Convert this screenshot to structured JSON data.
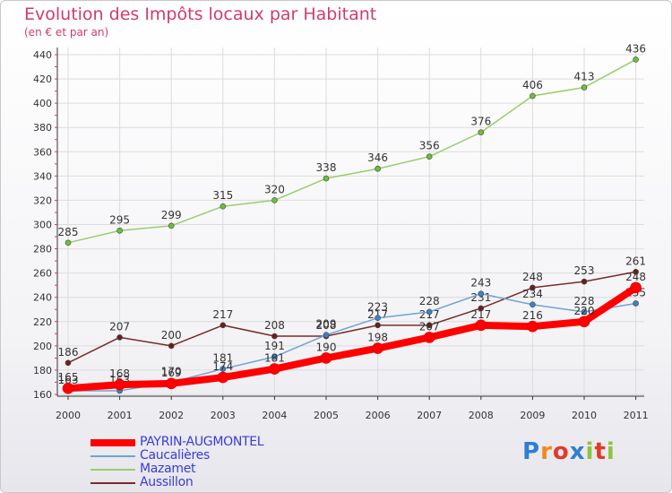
{
  "chart_data": {
    "type": "line",
    "title": "Evolution des Impôts locaux par Habitant",
    "subtitle": "(en € et par an)",
    "x": [
      "2000",
      "2001",
      "2002",
      "2003",
      "2004",
      "2005",
      "2006",
      "2007",
      "2008",
      "2009",
      "2010",
      "2011"
    ],
    "ylim": [
      160,
      440
    ],
    "yticks": [
      160,
      180,
      200,
      220,
      240,
      260,
      280,
      300,
      320,
      340,
      360,
      380,
      400,
      420,
      440
    ],
    "series": [
      {
        "name": "Mazamet",
        "color": "#9acd6a",
        "marker": "#6cbf3a",
        "values": [
          285,
          295,
          299,
          315,
          320,
          338,
          346,
          356,
          376,
          406,
          413,
          436
        ]
      },
      {
        "name": "Aussillon",
        "color": "#7a2a2a",
        "marker": "#6b1f1f",
        "values": [
          186,
          207,
          200,
          217,
          208,
          208,
          217,
          217,
          231,
          248,
          253,
          261
        ]
      },
      {
        "name": "Caucalières",
        "color": "#6fa3d6",
        "marker": "#3d82c7",
        "values": [
          163,
          163,
          170,
          181,
          191,
          209,
          223,
          228,
          243,
          234,
          228,
          235
        ]
      },
      {
        "name": "PAYRIN-AUGMONTEL",
        "color": "#ff0000",
        "marker": "#ff0000",
        "values": [
          165,
          168,
          169,
          174,
          181,
          190,
          198,
          207,
          217,
          216,
          220,
          248
        ]
      }
    ],
    "legend": [
      "PAYRIN-AUGMONTEL",
      "Caucalières",
      "Mazamet",
      "Aussillon"
    ]
  },
  "logo": {
    "text": "Proxiti",
    "colors": [
      "#2f7fd1",
      "#f08a1c",
      "#e23a2a",
      "#2f7fd1",
      "#8fc43a",
      "#e23a2a",
      "#8fc43a"
    ]
  }
}
